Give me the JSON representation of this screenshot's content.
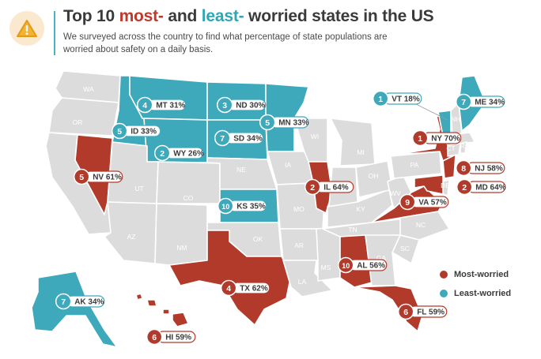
{
  "header": {
    "title_part1": "Top 10 ",
    "title_most": "most-",
    "title_part2": " and ",
    "title_least": "least-",
    "title_part3": " worried states in the US",
    "subtitle": "We surveyed across the country to find what percentage of state populations are worried about safety on a daily basis.",
    "icon": "warning-icon"
  },
  "colors": {
    "most": "#b23a2b",
    "least": "#3ea9bb",
    "neutral": "#dcdcdc",
    "border": "#ffffff",
    "title": "#3a3a3a"
  },
  "state_labels": [
    "WA",
    "OR",
    "CA",
    "ID",
    "NV",
    "UT",
    "AZ",
    "MT",
    "WY",
    "CO",
    "NM",
    "ND",
    "SD",
    "NE",
    "KS",
    "OK",
    "TX",
    "MN",
    "IA",
    "MO",
    "AR",
    "LA",
    "WI",
    "IL",
    "MS",
    "MI",
    "IN",
    "KY",
    "TN",
    "AL",
    "OH",
    "WV",
    "VA",
    "NC",
    "SC",
    "GA",
    "FL",
    "PA",
    "NY",
    "VT",
    "NH",
    "ME",
    "MA",
    "CT",
    "RI",
    "NJ",
    "DE",
    "MD",
    "AK",
    "HI"
  ],
  "rankings": [
    {
      "rank": "1",
      "state": "VT",
      "pct": "18%",
      "group": "least"
    },
    {
      "rank": "2",
      "state": "WY",
      "pct": "26%",
      "group": "least"
    },
    {
      "rank": "3",
      "state": "ND",
      "pct": "30%",
      "group": "least"
    },
    {
      "rank": "4",
      "state": "MT",
      "pct": "31%",
      "group": "least"
    },
    {
      "rank": "5",
      "state": "ID",
      "pct": "33%",
      "group": "least"
    },
    {
      "rank": "5",
      "state": "MN",
      "pct": "33%",
      "group": "least"
    },
    {
      "rank": "7",
      "state": "SD",
      "pct": "34%",
      "group": "least"
    },
    {
      "rank": "7",
      "state": "ME",
      "pct": "34%",
      "group": "least"
    },
    {
      "rank": "7",
      "state": "AK",
      "pct": "34%",
      "group": "least"
    },
    {
      "rank": "10",
      "state": "KS",
      "pct": "35%",
      "group": "least"
    },
    {
      "rank": "1",
      "state": "NY",
      "pct": "70%",
      "group": "most"
    },
    {
      "rank": "2",
      "state": "IL",
      "pct": "64%",
      "group": "most"
    },
    {
      "rank": "2",
      "state": "MD",
      "pct": "64%",
      "group": "most"
    },
    {
      "rank": "4",
      "state": "TX",
      "pct": "62%",
      "group": "most"
    },
    {
      "rank": "5",
      "state": "NV",
      "pct": "61%",
      "group": "most"
    },
    {
      "rank": "6",
      "state": "HI",
      "pct": "59%",
      "group": "most"
    },
    {
      "rank": "6",
      "state": "FL",
      "pct": "59%",
      "group": "most"
    },
    {
      "rank": "8",
      "state": "NJ",
      "pct": "58%",
      "group": "most"
    },
    {
      "rank": "9",
      "state": "VA",
      "pct": "57%",
      "group": "most"
    },
    {
      "rank": "10",
      "state": "AL",
      "pct": "56%",
      "group": "most"
    }
  ],
  "legend": {
    "most": "Most-worried",
    "least": "Least-worried"
  }
}
